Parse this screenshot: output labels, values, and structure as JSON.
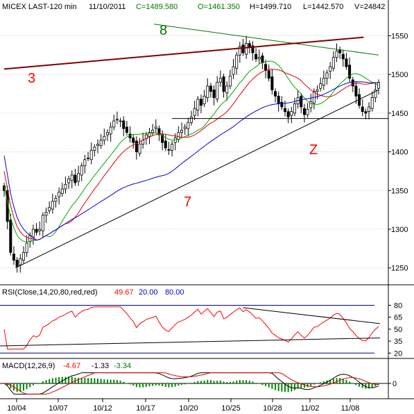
{
  "header": {
    "symbol": "MICEX LAST-120 min",
    "date": "11/10/2011",
    "close": "C=1489.580",
    "open": "O=1461.350",
    "high": "H=1499.710",
    "low": "L=1442.570",
    "volume": "V=24842"
  },
  "colors": {
    "bull": "#000000",
    "ma_fast": "#00aa00",
    "ma_mid": "#dd0000",
    "ma_slow": "#0000dd",
    "line8": "#007700",
    "line3": "#800000",
    "rsi": "#ff0000",
    "macd": "#dd0000",
    "signal": "#007700",
    "hist": "#008800",
    "ref": "#000099",
    "label_red": "#ff0000",
    "label_green": "#007700"
  },
  "labels": {
    "line8": "8",
    "line3": "3",
    "line7": "7",
    "z": "Z"
  },
  "chart_data": [
    {
      "type": "candlestick",
      "title": "MICEX LAST-120 min",
      "ylim": [
        1230,
        1580
      ],
      "yticks": [
        1250,
        1300,
        1350,
        1400,
        1450,
        1500,
        1550
      ],
      "x_ticks": [
        "10/04",
        "10/07",
        "10/12",
        "10/17",
        "10/20",
        "10/25",
        "10/28",
        "11/02",
        "11/08"
      ],
      "closes": [
        1350,
        1310,
        1270,
        1260,
        1252,
        1262,
        1270,
        1282,
        1292,
        1300,
        1296,
        1300,
        1318,
        1322,
        1328,
        1336,
        1340,
        1348,
        1352,
        1358,
        1365,
        1370,
        1360,
        1372,
        1382,
        1390,
        1392,
        1402,
        1406,
        1410,
        1415,
        1420,
        1425,
        1432,
        1440,
        1442,
        1440,
        1430,
        1425,
        1418,
        1412,
        1400,
        1410,
        1415,
        1422,
        1425,
        1428,
        1432,
        1422,
        1412,
        1405,
        1402,
        1410,
        1418,
        1425,
        1428,
        1432,
        1438,
        1445,
        1456,
        1468,
        1460,
        1472,
        1485,
        1478,
        1470,
        1490,
        1495,
        1478,
        1485,
        1498,
        1510,
        1525,
        1536,
        1528,
        1540,
        1535,
        1528,
        1520,
        1522,
        1515,
        1505,
        1495,
        1480,
        1472,
        1462,
        1458,
        1452,
        1445,
        1452,
        1462,
        1470,
        1458,
        1448,
        1455,
        1465,
        1478,
        1480,
        1488,
        1495,
        1502,
        1510,
        1522,
        1530,
        1528,
        1520,
        1510,
        1495,
        1485,
        1472,
        1460,
        1452,
        1450,
        1458,
        1470,
        1480,
        1489.58
      ],
      "ma_fast_period": 14,
      "ma_mid_period": 20,
      "ma_slow_period": 50,
      "horizontal_level": 1443,
      "trendlines": [
        {
          "name": "8",
          "from": [
            0.4,
            1565
          ],
          "to": [
            1.0,
            1525
          ]
        },
        {
          "name": "3",
          "from": [
            0.0,
            1507
          ],
          "to": [
            0.96,
            1548
          ]
        },
        {
          "name": "7",
          "from": [
            0.03,
            1250
          ],
          "to": [
            1.0,
            1480
          ]
        }
      ]
    },
    {
      "type": "line",
      "title": "RSI(Close,14,20,80,red,red)",
      "current": "49.67",
      "levels": [
        "20.00",
        "80.00"
      ],
      "ylim": [
        15,
        90
      ],
      "yticks": [
        20,
        35,
        50,
        65,
        80
      ]
    },
    {
      "type": "line",
      "title": "MACD(12,26,9)",
      "values": [
        "-4.67",
        "-1.33",
        "-3.34"
      ],
      "yticks": [
        0
      ]
    }
  ]
}
